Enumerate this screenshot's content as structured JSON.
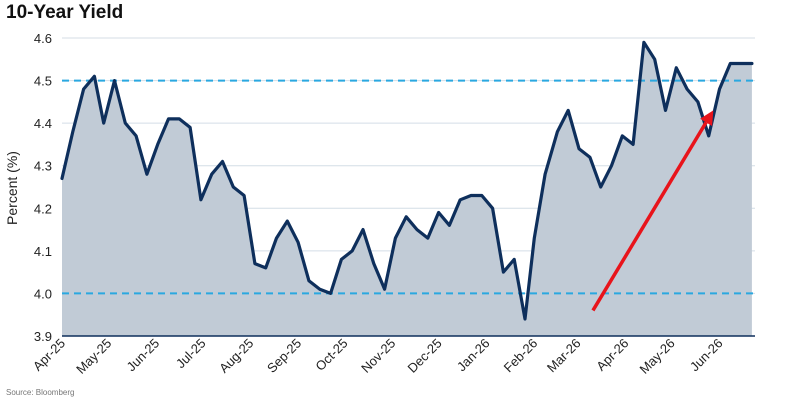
{
  "chart_data": {
    "type": "area",
    "title": "10-Year Yield",
    "ylabel": "Percent (%)",
    "xlabel": "",
    "source": "Source: Bloomberg",
    "ylim": [
      3.9,
      4.6
    ],
    "yticks": [
      3.9,
      4.0,
      4.1,
      4.2,
      4.3,
      4.4,
      4.5,
      4.6
    ],
    "ytick_labels": [
      "3.9",
      "4.0",
      "4.1",
      "4.2",
      "4.3",
      "4.4",
      "4.5",
      "4.6"
    ],
    "xlim": [
      "2025-04-01",
      "2026-06-24"
    ],
    "xticks": [
      "2025-04-01",
      "2025-05-01",
      "2025-06-01",
      "2025-07-01",
      "2025-08-01",
      "2025-09-01",
      "2025-10-01",
      "2025-11-01",
      "2025-12-01",
      "2026-01-01",
      "2026-02-01",
      "2026-03-01",
      "2026-04-01",
      "2026-05-01",
      "2026-06-01"
    ],
    "xtick_labels": [
      "Apr-25",
      "May-25",
      "Jun-25",
      "Jul-25",
      "Aug-25",
      "Sep-25",
      "Oct-25",
      "Nov-25",
      "Dec-25",
      "Jan-26",
      "Feb-26",
      "Mar-26",
      "Apr-26",
      "May-26",
      "Jun-26"
    ],
    "grid": true,
    "series": [
      {
        "x": [
          "2025-04-01",
          "2025-04-08",
          "2025-04-15",
          "2025-04-22",
          "2025-04-28",
          "2025-05-05",
          "2025-05-12",
          "2025-05-19",
          "2025-05-26",
          "2025-06-02",
          "2025-06-09",
          "2025-06-16",
          "2025-06-23",
          "2025-06-30",
          "2025-07-07",
          "2025-07-14",
          "2025-07-21",
          "2025-07-28",
          "2025-08-04",
          "2025-08-11",
          "2025-08-18",
          "2025-08-25",
          "2025-09-01",
          "2025-09-08",
          "2025-09-15",
          "2025-09-22",
          "2025-09-29",
          "2025-10-06",
          "2025-10-13",
          "2025-10-20",
          "2025-10-27",
          "2025-11-03",
          "2025-11-10",
          "2025-11-17",
          "2025-11-24",
          "2025-12-01",
          "2025-12-08",
          "2025-12-15",
          "2025-12-22",
          "2025-12-29",
          "2026-01-05",
          "2026-01-12",
          "2026-01-19",
          "2026-01-26",
          "2026-02-01",
          "2026-02-08",
          "2026-02-16",
          "2026-02-23",
          "2026-03-02",
          "2026-03-09",
          "2026-03-16",
          "2026-03-23",
          "2026-03-30",
          "2026-04-06",
          "2026-04-13",
          "2026-04-20",
          "2026-04-27",
          "2026-05-04",
          "2026-05-11",
          "2026-05-18",
          "2026-05-25",
          "2026-06-01",
          "2026-06-08",
          "2026-06-15",
          "2026-06-22"
        ],
        "values": [
          4.27,
          4.38,
          4.48,
          4.51,
          4.4,
          4.5,
          4.4,
          4.37,
          4.28,
          4.35,
          4.41,
          4.41,
          4.39,
          4.22,
          4.28,
          4.31,
          4.25,
          4.23,
          4.07,
          4.06,
          4.13,
          4.17,
          4.12,
          4.03,
          4.01,
          4.0,
          4.08,
          4.1,
          4.15,
          4.07,
          4.01,
          4.13,
          4.18,
          4.15,
          4.13,
          4.19,
          4.16,
          4.22,
          4.23,
          4.23,
          4.2,
          4.05,
          4.08,
          3.94,
          4.13,
          4.28,
          4.38,
          4.43,
          4.34,
          4.32,
          4.25,
          4.3,
          4.37,
          4.35,
          4.59,
          4.55,
          4.43,
          4.53,
          4.48,
          4.45,
          4.37,
          4.48,
          4.54,
          4.54,
          4.54
        ]
      }
    ],
    "reference_lines": [
      4.5,
      4.0
    ],
    "arrow": {
      "from": {
        "x": "2026-03-11",
        "y": 3.96
      },
      "to": {
        "x": "2026-05-28",
        "y": 4.43
      }
    },
    "colors": {
      "line": "#0e2f5c",
      "fill": "#c1cbd6",
      "reference_line": "#2aa8e0",
      "arrow": "#e8141b",
      "grid": "#d4dde6",
      "axis": "#0e2f5c"
    }
  }
}
